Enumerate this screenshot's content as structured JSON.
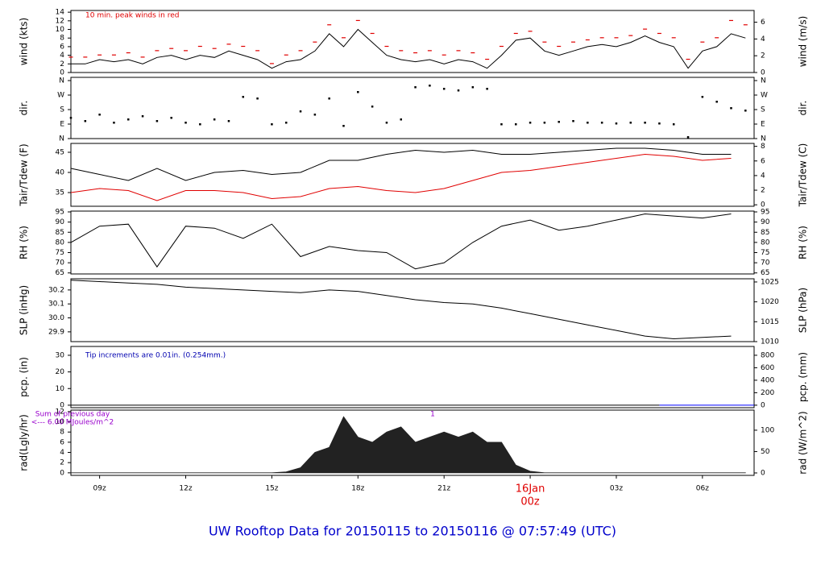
{
  "title": "UW Rooftop Data for 20150115  to  20150116 @ 07:57:49  (UTC)",
  "chart_data": [
    {
      "type": "line",
      "ylabel": "wind (kts)",
      "y2label": "wind (m/s)",
      "xlim": [
        8,
        31.8
      ],
      "ylim": [
        0,
        14.4
      ],
      "yticks": [
        0,
        2,
        4,
        6,
        8,
        10,
        12,
        14
      ],
      "y2lim": [
        0,
        7.4
      ],
      "y2ticks": [
        0,
        2,
        4,
        6
      ],
      "annotations": [
        {
          "text": "10 min. peak winds in red",
          "color": "#e00000"
        }
      ],
      "x": [
        8,
        8.5,
        9,
        9.5,
        10,
        10.5,
        11,
        11.5,
        12,
        12.5,
        13,
        13.5,
        14,
        14.5,
        15,
        15.5,
        16,
        16.5,
        17,
        17.5,
        18,
        18.5,
        19,
        19.5,
        20,
        20.5,
        21,
        21.5,
        22,
        22.5,
        23,
        23.5,
        24,
        24.5,
        25,
        25.5,
        26,
        26.5,
        27,
        27.5,
        28,
        28.5,
        29,
        29.5,
        30,
        30.5,
        31,
        31.5
      ],
      "series": [
        {
          "color": "#000000",
          "marker": "line",
          "values": [
            2,
            2,
            3,
            2.5,
            3,
            2,
            3.5,
            4,
            3,
            4,
            3.5,
            5,
            4,
            3,
            1,
            2.5,
            3,
            5,
            9,
            6,
            10,
            7,
            4,
            3,
            2.5,
            3,
            2,
            3,
            2.5,
            1,
            4,
            7.5,
            8,
            5,
            4,
            5,
            6,
            6.5,
            6,
            7,
            8.5,
            7,
            6,
            1,
            5,
            6,
            9,
            8
          ]
        },
        {
          "color": "#e00000",
          "marker": "dash",
          "values": [
            3.5,
            3.5,
            4,
            4,
            4.5,
            3.5,
            5,
            5.5,
            5,
            6,
            5.5,
            6.5,
            6,
            5,
            2,
            4,
            5,
            7,
            11,
            8,
            12,
            9,
            6,
            5,
            4.5,
            5,
            4,
            5,
            4.5,
            3,
            6,
            9,
            9.5,
            7,
            6,
            7,
            7.5,
            8,
            8,
            8.5,
            10,
            9,
            8,
            3,
            7,
            8,
            12,
            11
          ]
        }
      ]
    },
    {
      "type": "scatter",
      "ylabel": "dir.",
      "y2label": "dir.",
      "xlim": [
        8,
        31.8
      ],
      "ylim": [
        0,
        380
      ],
      "yticks": [
        {
          "value": 0,
          "label": "N"
        },
        {
          "value": 90,
          "label": "E"
        },
        {
          "value": 180,
          "label": "S"
        },
        {
          "value": 270,
          "label": "W"
        },
        {
          "value": 360,
          "label": "N"
        }
      ],
      "x": [
        8,
        8.5,
        9,
        9.5,
        10,
        10.5,
        11,
        11.5,
        12,
        12.5,
        13,
        13.5,
        14,
        14.5,
        15,
        15.5,
        16,
        16.5,
        17,
        17.5,
        18,
        18.5,
        19,
        19.5,
        20,
        20.5,
        21,
        21.5,
        22,
        22.5,
        23,
        23.5,
        24,
        24.5,
        25,
        25.5,
        26,
        26.5,
        27,
        27.5,
        28,
        28.5,
        29,
        29.5,
        30,
        30.5,
        31,
        31.5
      ],
      "series": [
        {
          "color": "#000000",
          "values": [
            130,
            110,
            150,
            100,
            120,
            140,
            110,
            130,
            100,
            90,
            120,
            110,
            260,
            250,
            90,
            100,
            170,
            150,
            250,
            80,
            290,
            200,
            100,
            120,
            320,
            330,
            310,
            300,
            320,
            310,
            90,
            90,
            100,
            100,
            105,
            110,
            100,
            100,
            95,
            100,
            100,
            95,
            90,
            10,
            260,
            230,
            190,
            175
          ]
        }
      ]
    },
    {
      "type": "line",
      "ylabel": "Tair/Tdew (F)",
      "y2label": "Tair/Tdew (C)",
      "xlim": [
        8,
        31.8
      ],
      "ylim": [
        31.6,
        47.2
      ],
      "yticks": [
        35,
        40,
        45
      ],
      "y2lim": [
        -0.2,
        8.4
      ],
      "y2ticks": [
        0,
        2,
        4,
        6,
        8
      ],
      "x": [
        8,
        9,
        10,
        11,
        12,
        13,
        14,
        15,
        16,
        17,
        18,
        19,
        20,
        21,
        22,
        23,
        24,
        25,
        26,
        27,
        28,
        29,
        30,
        31
      ],
      "series": [
        {
          "color": "#000000",
          "marker": "line",
          "values": [
            41,
            39.5,
            38,
            41,
            38,
            40,
            40.5,
            39.5,
            40,
            43,
            43,
            44.5,
            45.5,
            45,
            45.5,
            44.5,
            44.5,
            45,
            45.5,
            46,
            46,
            45.5,
            44.5,
            44.5
          ]
        },
        {
          "color": "#e00000",
          "marker": "line",
          "values": [
            35,
            36,
            35.5,
            33,
            35.5,
            35.5,
            35,
            33.5,
            34,
            36,
            36.5,
            35.5,
            35,
            36,
            38,
            40,
            40.5,
            41.5,
            42.5,
            43.5,
            44.5,
            44,
            43,
            43.5
          ]
        }
      ]
    },
    {
      "type": "line",
      "ylabel": "RH (%)",
      "y2label": "RH (%)",
      "xlim": [
        8,
        31.8
      ],
      "ylim": [
        64.5,
        95.4
      ],
      "yticks": [
        65,
        70,
        75,
        80,
        85,
        90,
        95
      ],
      "y2lim": [
        64.5,
        95.4
      ],
      "y2ticks": [
        65,
        70,
        75,
        80,
        85,
        90,
        95
      ],
      "x": [
        8,
        9,
        10,
        11,
        12,
        13,
        14,
        15,
        16,
        17,
        18,
        19,
        20,
        21,
        22,
        23,
        24,
        25,
        26,
        27,
        28,
        29,
        30,
        31
      ],
      "series": [
        {
          "color": "#000000",
          "marker": "line",
          "values": [
            80,
            88,
            89,
            68,
            88,
            87,
            82,
            89,
            73,
            78,
            76,
            75,
            67,
            70,
            80,
            88,
            91,
            86,
            88,
            91,
            94,
            93,
            92,
            94
          ]
        }
      ]
    },
    {
      "type": "line",
      "ylabel": "SLP (inHg)",
      "y2label": "SLP (hPa)",
      "xlim": [
        8,
        31.8
      ],
      "ylim": [
        29.83,
        30.28
      ],
      "yticks": [
        29.9,
        {
          "value": 30,
          "label": "30.0"
        },
        30.1,
        30.2
      ],
      "y2lim": [
        1010,
        1025.8
      ],
      "y2ticks": [
        1010,
        1015,
        1020,
        1025
      ],
      "x": [
        8,
        9,
        10,
        11,
        12,
        13,
        14,
        15,
        16,
        17,
        18,
        19,
        20,
        21,
        22,
        23,
        24,
        25,
        26,
        27,
        28,
        29,
        30,
        31
      ],
      "series": [
        {
          "color": "#000000",
          "marker": "line",
          "values": [
            30.27,
            30.26,
            30.25,
            30.24,
            30.22,
            30.21,
            30.2,
            30.19,
            30.18,
            30.2,
            30.19,
            30.16,
            30.13,
            30.11,
            30.1,
            30.07,
            30.03,
            29.99,
            29.95,
            29.91,
            29.87,
            29.85,
            29.86,
            29.87
          ]
        }
      ]
    },
    {
      "type": "line",
      "ylabel": "pcp. (in)",
      "y2label": "pcp. (mm)",
      "xlim": [
        8,
        31.8
      ],
      "ylim": [
        -1.5,
        35.3
      ],
      "yticks": [
        0,
        10,
        20,
        30
      ],
      "y2lim": [
        -40,
        941
      ],
      "y2ticks": [
        0,
        200,
        400,
        600,
        800
      ],
      "annotations": [
        {
          "text": "Tip increments are 0.01in. (0.254mm.)",
          "color": "#0000b0"
        }
      ],
      "x": [
        8,
        28.5,
        31.8
      ],
      "series": [
        {
          "color": "#000000",
          "marker": "line",
          "values": [
            0,
            0,
            null
          ]
        },
        {
          "color": "#0000ff",
          "marker": "line",
          "values": [
            null,
            0,
            0
          ]
        }
      ]
    },
    {
      "type": "area",
      "ylabel": "rad(Lgly/hr)",
      "y2label": "rad (W/m^2)",
      "xlim": [
        8,
        31.8
      ],
      "ylim": [
        -0.5,
        12.3
      ],
      "yticks": [
        0,
        2,
        4,
        6,
        8,
        10,
        12
      ],
      "y2lim": [
        -5.7,
        147
      ],
      "y2ticks": [
        0,
        50,
        100
      ],
      "annotations": [
        {
          "text": "Sum of previous day",
          "color": "#9900cc"
        },
        {
          "text": "<--- 6.00 MJoules/m^2",
          "color": "#9900cc"
        },
        {
          "text": "1",
          "color": "#9900cc"
        }
      ],
      "xticks": [
        {
          "value": 9,
          "label": "09z"
        },
        {
          "value": 12,
          "label": "12z"
        },
        {
          "value": 15,
          "label": "15z"
        },
        {
          "value": 18,
          "label": "18z"
        },
        {
          "value": 21,
          "label": "21z"
        },
        {
          "value": 24,
          "label": "00z",
          "date": "16Jan",
          "color": "#e00000"
        },
        {
          "value": 27,
          "label": "03z"
        },
        {
          "value": 30,
          "label": "06z"
        }
      ],
      "x": [
        8,
        8.5,
        9,
        9.5,
        10,
        10.5,
        11,
        11.5,
        12,
        12.5,
        13,
        13.5,
        14,
        14.5,
        15,
        15.5,
        16,
        16.5,
        17,
        17.5,
        18,
        18.5,
        19,
        19.5,
        20,
        20.5,
        21,
        21.5,
        22,
        22.5,
        23,
        23.5,
        24,
        24.5,
        25,
        25.5,
        26,
        26.5,
        27,
        27.5,
        28,
        28.5,
        29,
        29.5,
        30,
        30.5,
        31,
        31.5
      ],
      "series": [
        {
          "color": "#222222",
          "values": [
            0,
            0,
            0,
            0,
            0,
            0,
            0,
            0,
            0,
            0,
            0,
            0,
            0,
            0,
            0,
            0.2,
            1,
            4,
            5,
            11,
            7,
            6,
            8,
            9,
            6,
            7,
            8,
            7,
            8,
            6,
            6,
            1.5,
            0.3,
            0,
            0,
            0,
            0,
            0,
            0,
            0,
            0,
            0,
            0,
            0,
            0,
            0,
            0,
            0
          ]
        }
      ]
    }
  ]
}
